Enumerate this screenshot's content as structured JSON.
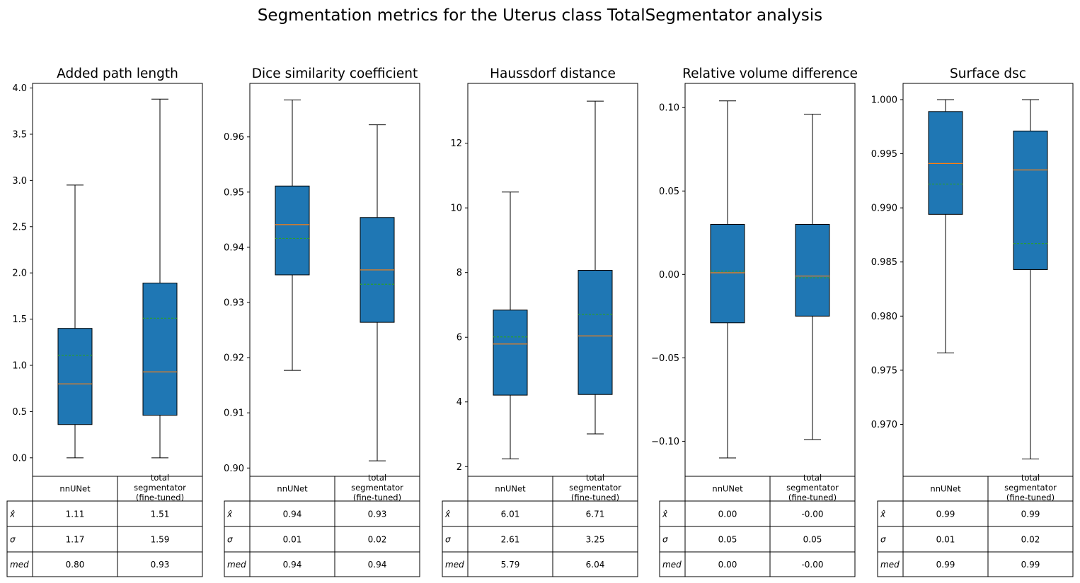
{
  "suptitle": "Segmentation metrics for the Uterus class TotalSegmentator analysis",
  "colors": {
    "box": "#1f77b4",
    "median": "#ff7f0e",
    "mean": "#2ca02c",
    "line": "#000000"
  },
  "table_row_labels": [
    "x̂",
    "σ",
    "med"
  ],
  "categories": [
    "nnUNet",
    "total segmentator (fine-tuned)"
  ],
  "chart_data": [
    {
      "type": "box",
      "title": "Added path length",
      "ylim": [
        -0.2,
        4.05
      ],
      "yticks": [
        0.0,
        0.5,
        1.0,
        1.5,
        2.0,
        2.5,
        3.0,
        3.5,
        4.0
      ],
      "ytick_labels": [
        "0.0",
        "0.5",
        "1.0",
        "1.5",
        "2.0",
        "2.5",
        "3.0",
        "3.5",
        "4.0"
      ],
      "boxes": [
        {
          "whislo": 0.0,
          "q1": 0.36,
          "med": 0.8,
          "q3": 1.4,
          "whishi": 2.95,
          "mean": 1.11
        },
        {
          "whislo": 0.0,
          "q1": 0.46,
          "med": 0.93,
          "q3": 1.89,
          "whishi": 3.88,
          "mean": 1.51
        }
      ],
      "table": [
        [
          "1.11",
          "1.51"
        ],
        [
          "1.17",
          "1.59"
        ],
        [
          "0.80",
          "0.93"
        ]
      ]
    },
    {
      "type": "box",
      "title": "Dice similarity coefficient",
      "ylim": [
        0.8985,
        0.9697
      ],
      "yticks": [
        0.9,
        0.91,
        0.92,
        0.93,
        0.94,
        0.95,
        0.96
      ],
      "ytick_labels": [
        "0.90",
        "0.91",
        "0.92",
        "0.93",
        "0.94",
        "0.95",
        "0.96"
      ],
      "boxes": [
        {
          "whislo": 0.9177,
          "q1": 0.935,
          "med": 0.9441,
          "q3": 0.9511,
          "whishi": 0.9667,
          "mean": 0.9416
        },
        {
          "whislo": 0.9013,
          "q1": 0.9264,
          "med": 0.9359,
          "q3": 0.9454,
          "whishi": 0.9622,
          "mean": 0.9333
        }
      ],
      "table": [
        [
          "0.94",
          "0.93"
        ],
        [
          "0.01",
          "0.02"
        ],
        [
          "0.94",
          "0.94"
        ]
      ]
    },
    {
      "type": "box",
      "title": "Haussdorf distance",
      "ylim": [
        1.7,
        13.85
      ],
      "yticks": [
        2,
        4,
        6,
        8,
        10,
        12
      ],
      "ytick_labels": [
        "2",
        "4",
        "6",
        "8",
        "10",
        "12"
      ],
      "boxes": [
        {
          "whislo": 2.24,
          "q1": 4.21,
          "med": 5.79,
          "q3": 6.84,
          "whishi": 10.49,
          "mean": 6.01
        },
        {
          "whislo": 3.01,
          "q1": 4.23,
          "med": 6.04,
          "q3": 8.07,
          "whishi": 13.3,
          "mean": 6.71
        }
      ],
      "table": [
        [
          "6.01",
          "6.71"
        ],
        [
          "2.61",
          "3.25"
        ],
        [
          "5.79",
          "6.04"
        ]
      ]
    },
    {
      "type": "box",
      "title": "Relative volume difference",
      "ylim": [
        -0.121,
        0.1145
      ],
      "yticks": [
        0.1,
        0.05,
        0.0,
        -0.05,
        -0.1
      ],
      "ytick_labels": [
        "0.10",
        "0.05",
        "0.00",
        "−0.05",
        "−0.10"
      ],
      "boxes": [
        {
          "whislo": -0.11,
          "q1": -0.029,
          "med": 0.001,
          "q3": 0.03,
          "whishi": 0.104,
          "mean": 0.002
        },
        {
          "whislo": -0.099,
          "q1": -0.025,
          "med": -0.001,
          "q3": 0.03,
          "whishi": 0.096,
          "mean": -0.002
        }
      ],
      "table": [
        [
          "0.00",
          "-0.00"
        ],
        [
          "0.05",
          "0.05"
        ],
        [
          "0.00",
          "-0.00"
        ]
      ]
    },
    {
      "type": "box",
      "title": "Surface dsc",
      "ylim": [
        0.9652,
        1.0015
      ],
      "yticks": [
        1.0,
        0.995,
        0.99,
        0.985,
        0.98,
        0.975,
        0.97
      ],
      "ytick_labels": [
        "1.000",
        "0.995",
        "0.990",
        "0.985",
        "0.980",
        "0.975",
        "0.970"
      ],
      "boxes": [
        {
          "whislo": 0.9766,
          "q1": 0.9894,
          "med": 0.9941,
          "q3": 0.9989,
          "whishi": 1.0,
          "mean": 0.9922
        },
        {
          "whislo": 0.9668,
          "q1": 0.9843,
          "med": 0.9935,
          "q3": 0.9971,
          "whishi": 1.0,
          "mean": 0.9867
        }
      ],
      "table": [
        [
          "0.99",
          "0.99"
        ],
        [
          "0.01",
          "0.02"
        ],
        [
          "0.99",
          "0.99"
        ]
      ]
    }
  ]
}
